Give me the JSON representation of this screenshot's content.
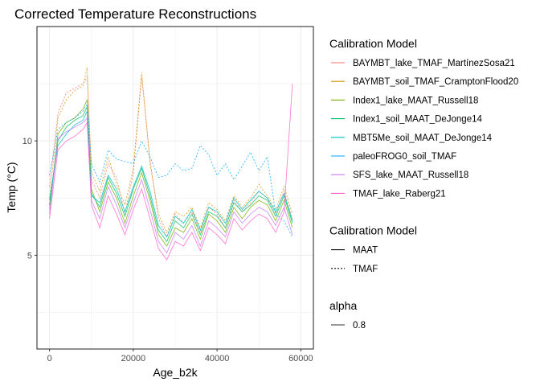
{
  "chart_data": {
    "type": "line",
    "title": "Corrected Temperature Reconstructions",
    "xlabel": "Age_b2k",
    "ylabel": "Temp (°C)",
    "xlim": [
      -3000,
      63000
    ],
    "ylim": [
      0.9,
      15.0
    ],
    "x_ticks": [
      0,
      20000,
      40000,
      60000
    ],
    "x_tick_labels": [
      "0",
      "20000",
      "40000",
      "60000"
    ],
    "y_ticks": [
      5,
      10
    ],
    "y_tick_labels": [
      "5",
      "10"
    ],
    "grid": true,
    "legend_position": "right",
    "legends": [
      {
        "title": "Calibration Model",
        "kind": "color",
        "entries": [
          {
            "label": "BAYMBT_lake_TMAF_MartínezSosa21",
            "color": "#F8766D"
          },
          {
            "label": "BAYMBT_soil_TMAF_CramptonFlood20",
            "color": "#CD9600"
          },
          {
            "label": "Index1_lake_MAAT_Russell18",
            "color": "#7CAE00"
          },
          {
            "label": "Index1_soil_MAAT_DeJonge14",
            "color": "#00BE67"
          },
          {
            "label": "MBT5Me_soil_MAAT_DeJonge14",
            "color": "#00BFC4"
          },
          {
            "label": "paleoFROG0_soil_TMAF",
            "color": "#00A9FF"
          },
          {
            "label": "SFS_lake_MAAT_Russell18",
            "color": "#C77CFF"
          },
          {
            "label": "TMAF_lake_Raberg21",
            "color": "#FF61CC"
          }
        ]
      },
      {
        "title": "Calibration Model",
        "kind": "linetype",
        "entries": [
          {
            "label": "MAAT",
            "dash": "solid"
          },
          {
            "label": "TMAF",
            "dash": "dotted"
          }
        ]
      },
      {
        "title": "alpha",
        "kind": "alpha",
        "entries": [
          {
            "label": "0.8"
          }
        ]
      }
    ],
    "x": [
      0,
      2000,
      4000,
      6000,
      8000,
      9000,
      10000,
      12000,
      14000,
      16000,
      18000,
      20000,
      22000,
      24000,
      26000,
      28000,
      30000,
      32000,
      34000,
      36000,
      38000,
      40000,
      42000,
      44000,
      46000,
      48000,
      50000,
      52000,
      54000,
      56000,
      58000
    ],
    "series": [
      {
        "name": "BAYMBT_lake_TMAF_MartínezSosa21",
        "color": "#F8766D",
        "dash": "dotted",
        "values": [
          8.0,
          11.2,
          12.1,
          12.3,
          12.5,
          12.8,
          8.3,
          7.5,
          9.0,
          8.4,
          6.8,
          8.6,
          12.8,
          9.2,
          6.6,
          5.8,
          6.8,
          6.4,
          6.9,
          6.0,
          7.1,
          6.8,
          6.2,
          7.4,
          6.9,
          7.3,
          7.8,
          7.5,
          6.8,
          7.8,
          6.6
        ]
      },
      {
        "name": "BAYMBT_soil_TMAF_CramptonFlood20",
        "color": "#CD9600",
        "dash": "dotted",
        "values": [
          7.5,
          11.0,
          11.8,
          12.2,
          12.4,
          13.2,
          8.6,
          7.8,
          9.3,
          8.1,
          7.2,
          8.8,
          13.0,
          9.0,
          6.8,
          6.0,
          6.9,
          6.7,
          7.1,
          6.2,
          7.3,
          7.0,
          6.5,
          7.6,
          7.1,
          7.5,
          8.1,
          7.6,
          7.0,
          8.0,
          6.8
        ]
      },
      {
        "name": "Index1_lake_MAAT_Russell18",
        "color": "#7CAE00",
        "dash": "solid",
        "values": [
          7.0,
          10.3,
          10.8,
          11.0,
          11.4,
          11.8,
          7.9,
          6.9,
          8.2,
          7.5,
          6.4,
          7.6,
          8.6,
          7.4,
          5.9,
          5.4,
          6.2,
          6.0,
          6.6,
          5.7,
          6.8,
          6.5,
          6.0,
          7.1,
          6.6,
          7.1,
          7.4,
          7.2,
          6.5,
          7.4,
          6.2
        ]
      },
      {
        "name": "Index1_soil_MAAT_DeJonge14",
        "color": "#00BE67",
        "dash": "solid",
        "values": [
          7.2,
          10.0,
          10.6,
          10.9,
          11.1,
          11.5,
          7.7,
          7.1,
          8.4,
          7.7,
          6.7,
          7.9,
          8.8,
          7.6,
          6.1,
          5.6,
          6.5,
          6.2,
          6.8,
          5.9,
          6.9,
          6.7,
          6.2,
          7.3,
          6.9,
          7.2,
          7.6,
          7.4,
          6.7,
          7.6,
          6.4
        ]
      },
      {
        "name": "MBT5Me_soil_MAAT_DeJonge14",
        "color": "#00BFC4",
        "dash": "solid",
        "values": [
          7.4,
          9.8,
          10.3,
          10.7,
          10.9,
          11.3,
          7.6,
          7.3,
          8.5,
          7.9,
          6.9,
          8.0,
          8.9,
          7.8,
          6.3,
          5.8,
          6.7,
          6.4,
          7.0,
          6.1,
          7.1,
          6.9,
          6.4,
          7.5,
          7.0,
          7.4,
          7.8,
          7.5,
          6.9,
          7.7,
          6.5
        ]
      },
      {
        "name": "paleoFROG0_soil_TMAF",
        "color": "#00A9FF",
        "dash": "dotted",
        "values": [
          8.5,
          10.5,
          10.8,
          11.0,
          11.3,
          11.6,
          9.0,
          8.2,
          9.6,
          9.2,
          9.1,
          9.0,
          10.0,
          9.3,
          8.4,
          8.5,
          9.0,
          8.7,
          8.8,
          9.8,
          9.4,
          8.5,
          9.0,
          8.3,
          8.9,
          9.5,
          8.7,
          9.3,
          6.8,
          6.5,
          5.8
        ]
      },
      {
        "name": "SFS_lake_MAAT_Russell18",
        "color": "#C77CFF",
        "dash": "solid",
        "values": [
          6.8,
          10.1,
          10.4,
          10.6,
          10.8,
          11.0,
          7.4,
          6.6,
          8.0,
          7.2,
          6.2,
          7.3,
          8.3,
          7.0,
          5.6,
          5.1,
          6.0,
          5.7,
          6.3,
          5.4,
          6.5,
          6.2,
          5.8,
          6.9,
          6.4,
          6.8,
          7.1,
          6.9,
          6.3,
          7.1,
          5.9
        ]
      },
      {
        "name": "TMAF_lake_Raberg21",
        "color": "#FF61CC",
        "dash": "solid",
        "values": [
          6.6,
          9.6,
          10.0,
          10.2,
          10.5,
          10.8,
          7.2,
          6.2,
          7.6,
          6.8,
          5.9,
          7.0,
          7.9,
          6.6,
          5.3,
          4.8,
          5.6,
          5.4,
          6.0,
          5.2,
          6.2,
          5.9,
          5.5,
          6.6,
          6.1,
          6.5,
          6.8,
          6.6,
          6.0,
          6.9,
          12.5
        ]
      }
    ]
  }
}
